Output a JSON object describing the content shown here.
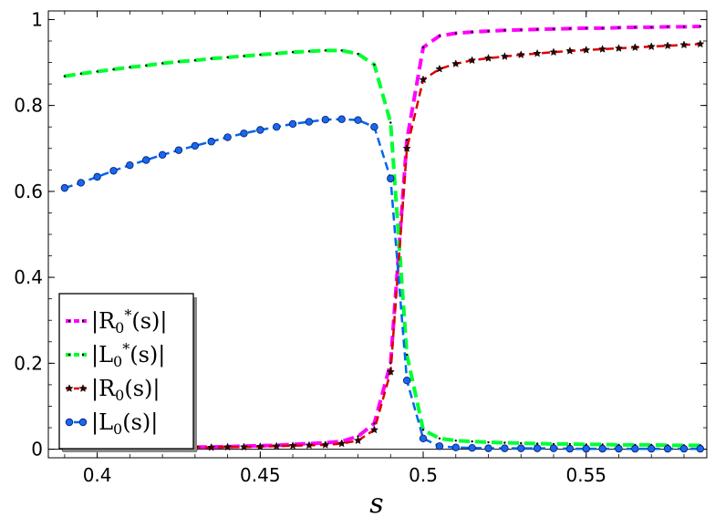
{
  "chart_data": {
    "type": "line",
    "title": "",
    "xlabel": "s",
    "ylabel": "",
    "xlim": [
      0.385,
      0.587
    ],
    "ylim": [
      -0.02,
      1.02
    ],
    "x_ticks": [
      0.4,
      0.45,
      0.5,
      0.55
    ],
    "x_tick_labels": [
      "0.4",
      "0.45",
      "0.5",
      "0.55"
    ],
    "y_ticks": [
      0,
      0.2,
      0.4,
      0.6,
      0.8,
      1
    ],
    "y_tick_labels": [
      "0",
      "0.2",
      "0.4",
      "0.6",
      "0.8",
      "1"
    ],
    "grid": false,
    "legend_position": "lower-left",
    "series": [
      {
        "name": "|R₀*(s)|",
        "legend_main": "|R",
        "legend_sub": "0",
        "legend_sup": "*",
        "legend_tail": "(s)|",
        "color": "#ff00ff",
        "marker": "dot",
        "line_width": 4,
        "dash": "12,6",
        "x": [
          0.39,
          0.395,
          0.4,
          0.405,
          0.41,
          0.415,
          0.42,
          0.425,
          0.43,
          0.435,
          0.44,
          0.445,
          0.45,
          0.455,
          0.46,
          0.465,
          0.47,
          0.475,
          0.48,
          0.485,
          0.49,
          0.495,
          0.5,
          0.505,
          0.51,
          0.515,
          0.52,
          0.525,
          0.53,
          0.535,
          0.54,
          0.545,
          0.55,
          0.555,
          0.56,
          0.565,
          0.57,
          0.575,
          0.58,
          0.585
        ],
        "values": [
          0.002,
          0.002,
          0.003,
          0.003,
          0.003,
          0.003,
          0.004,
          0.004,
          0.005,
          0.005,
          0.006,
          0.007,
          0.008,
          0.009,
          0.011,
          0.013,
          0.015,
          0.018,
          0.03,
          0.06,
          0.2,
          0.72,
          0.935,
          0.962,
          0.968,
          0.971,
          0.973,
          0.975,
          0.976,
          0.977,
          0.978,
          0.979,
          0.98,
          0.98,
          0.981,
          0.982,
          0.982,
          0.983,
          0.983,
          0.984
        ]
      },
      {
        "name": "|L₀*(s)|",
        "legend_main": "|L",
        "legend_sub": "0",
        "legend_sup": "*",
        "legend_tail": "(s)|",
        "color": "#00ff33",
        "marker": "dot",
        "line_width": 4,
        "dash": "12,6",
        "x": [
          0.39,
          0.395,
          0.4,
          0.405,
          0.41,
          0.415,
          0.42,
          0.425,
          0.43,
          0.435,
          0.44,
          0.445,
          0.45,
          0.455,
          0.46,
          0.465,
          0.47,
          0.475,
          0.48,
          0.485,
          0.49,
          0.495,
          0.5,
          0.505,
          0.51,
          0.515,
          0.52,
          0.525,
          0.53,
          0.535,
          0.54,
          0.545,
          0.55,
          0.555,
          0.56,
          0.565,
          0.57,
          0.575,
          0.58,
          0.585
        ],
        "values": [
          0.868,
          0.874,
          0.879,
          0.884,
          0.889,
          0.893,
          0.898,
          0.902,
          0.905,
          0.909,
          0.912,
          0.915,
          0.918,
          0.921,
          0.924,
          0.926,
          0.928,
          0.928,
          0.92,
          0.895,
          0.76,
          0.22,
          0.045,
          0.025,
          0.02,
          0.018,
          0.016,
          0.015,
          0.014,
          0.013,
          0.012,
          0.012,
          0.011,
          0.011,
          0.01,
          0.01,
          0.01,
          0.009,
          0.009,
          0.009
        ]
      },
      {
        "name": "|R₀(s)|",
        "legend_main": "|R",
        "legend_sub": "0",
        "legend_sup": "",
        "legend_tail": "(s)|",
        "color": "#dd0000",
        "marker": "star",
        "line_width": 2.5,
        "dash": "9,5",
        "x": [
          0.39,
          0.395,
          0.4,
          0.405,
          0.41,
          0.415,
          0.42,
          0.425,
          0.43,
          0.435,
          0.44,
          0.445,
          0.45,
          0.455,
          0.46,
          0.465,
          0.47,
          0.475,
          0.48,
          0.485,
          0.49,
          0.495,
          0.5,
          0.505,
          0.51,
          0.515,
          0.52,
          0.525,
          0.53,
          0.535,
          0.54,
          0.545,
          0.55,
          0.555,
          0.56,
          0.565,
          0.57,
          0.575,
          0.58,
          0.585
        ],
        "values": [
          0.002,
          0.002,
          0.002,
          0.003,
          0.003,
          0.003,
          0.003,
          0.004,
          0.004,
          0.004,
          0.005,
          0.005,
          0.006,
          0.007,
          0.008,
          0.009,
          0.01,
          0.013,
          0.02,
          0.045,
          0.18,
          0.7,
          0.86,
          0.885,
          0.897,
          0.905,
          0.91,
          0.914,
          0.918,
          0.921,
          0.924,
          0.927,
          0.929,
          0.931,
          0.933,
          0.935,
          0.937,
          0.939,
          0.941,
          0.943
        ]
      },
      {
        "name": "|L₀(s)|",
        "legend_main": "|L",
        "legend_sub": "0",
        "legend_sup": "",
        "legend_tail": "(s)|",
        "color": "#0066ee",
        "marker": "circle",
        "line_width": 2.5,
        "dash": "9,5",
        "x": [
          0.39,
          0.395,
          0.4,
          0.405,
          0.41,
          0.415,
          0.42,
          0.425,
          0.43,
          0.435,
          0.44,
          0.445,
          0.45,
          0.455,
          0.46,
          0.465,
          0.47,
          0.475,
          0.48,
          0.485,
          0.49,
          0.495,
          0.5,
          0.505,
          0.51,
          0.515,
          0.52,
          0.525,
          0.53,
          0.535,
          0.54,
          0.545,
          0.55,
          0.555,
          0.56,
          0.565,
          0.57,
          0.575,
          0.58,
          0.585
        ],
        "values": [
          0.608,
          0.62,
          0.634,
          0.648,
          0.661,
          0.673,
          0.685,
          0.696,
          0.706,
          0.716,
          0.726,
          0.735,
          0.743,
          0.75,
          0.757,
          0.762,
          0.767,
          0.768,
          0.766,
          0.75,
          0.63,
          0.16,
          0.025,
          0.007,
          0.004,
          0.003,
          0.002,
          0.002,
          0.002,
          0.002,
          0.002,
          0.001,
          0.001,
          0.001,
          0.001,
          0.001,
          0.001,
          0.001,
          0.001,
          0.001
        ]
      }
    ]
  }
}
